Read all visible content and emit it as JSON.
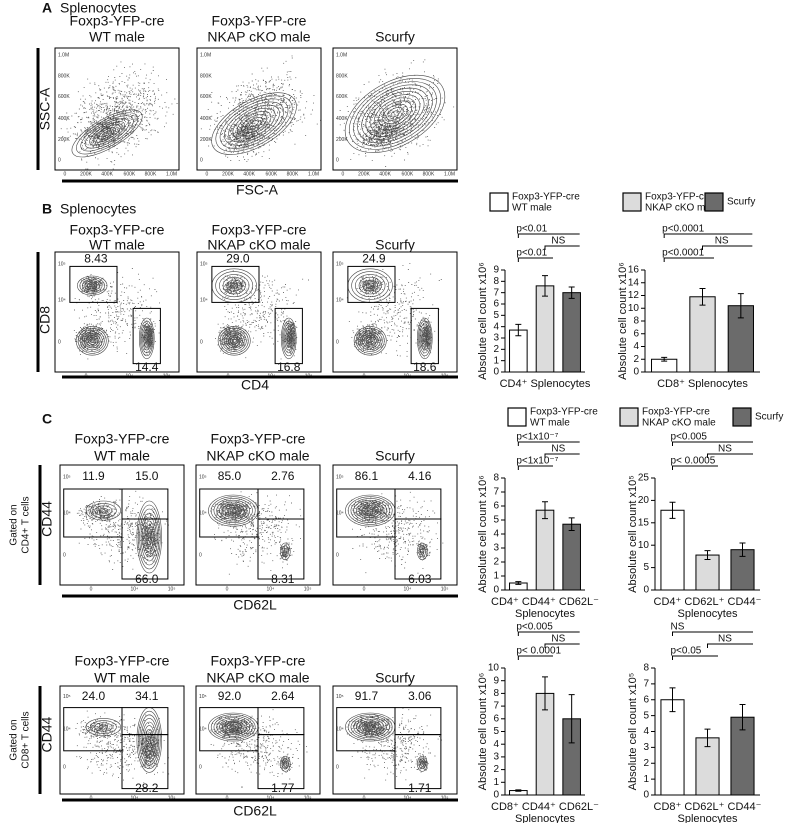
{
  "groups": [
    [
      "Foxp3-YFP-cre",
      "WT male"
    ],
    [
      "Foxp3-YFP-cre",
      "NKAP cKO male"
    ],
    [
      "Scurfy"
    ]
  ],
  "colors": [
    "#ffffff",
    "#dcdcdc",
    "#6b6b6b"
  ],
  "panels": {
    "A": {
      "label": "A",
      "title": "Splenocytes",
      "ylabel": "SSC-A",
      "xlabel": "FSC-A",
      "ticks": [
        "0",
        "200K",
        "400K",
        "600K",
        "800K",
        "1.0M"
      ]
    },
    "B": {
      "label": "B",
      "title": "Splenocytes",
      "ylabel": "CD8",
      "xlabel": "CD4",
      "ticks": [
        "0",
        "10⁴",
        "10⁵"
      ],
      "gates": [
        [
          "8.43",
          "14.4"
        ],
        [
          "29.0",
          "16.8"
        ],
        [
          "24.9",
          "18.6"
        ]
      ]
    },
    "C": {
      "label": "C",
      "ticks": [
        "0",
        "10⁴",
        "10⁵"
      ],
      "rows": [
        {
          "gated": [
            "Gated on",
            "CD4+ T cells"
          ],
          "ylabel": "CD44",
          "xlabel": "CD62L",
          "gates": [
            [
              "11.9",
              "15.0",
              "66.0"
            ],
            [
              "85.0",
              "2.76",
              "8.31"
            ],
            [
              "86.1",
              "4.16",
              "6.03"
            ]
          ]
        },
        {
          "gated": [
            "Gated on",
            "CD8+ T cells"
          ],
          "ylabel": "CD44",
          "xlabel": "CD62L",
          "gates": [
            [
              "24.0",
              "34.1",
              "28.2"
            ],
            [
              "92.0",
              "2.64",
              "1.77"
            ],
            [
              "91.7",
              "3.06",
              "1.71"
            ]
          ]
        }
      ]
    }
  },
  "chart_data": [
    {
      "type": "bar",
      "ylabel": "Absolute cell count x10⁶",
      "xlabel": [
        "CD4⁺ Splenocytes"
      ],
      "ylim": [
        0,
        9
      ],
      "yticks": [
        0,
        1,
        2,
        3,
        4,
        5,
        6,
        7,
        8,
        9
      ],
      "values": [
        3.7,
        7.6,
        7.0
      ],
      "errors": [
        0.5,
        0.9,
        0.5
      ],
      "annotations": [
        "p<0.01",
        "NS",
        "p<0.01"
      ]
    },
    {
      "type": "bar",
      "ylabel": "Absolute cell count x10⁶",
      "xlabel": [
        "CD8⁺ Splenocytes"
      ],
      "ylim": [
        0,
        16
      ],
      "yticks": [
        0,
        2,
        4,
        6,
        8,
        10,
        12,
        14,
        16
      ],
      "values": [
        2.0,
        11.8,
        10.4
      ],
      "errors": [
        0.3,
        1.3,
        1.9
      ],
      "annotations": [
        "p<0.0001",
        "NS",
        "p<0.0001"
      ]
    },
    {
      "type": "bar",
      "ylabel": "Absolute cell count x10⁶",
      "xlabel": [
        "CD4⁺ CD44⁺ CD62L⁻",
        "Splenocytes"
      ],
      "ylim": [
        0,
        8
      ],
      "yticks": [
        0,
        1,
        2,
        3,
        4,
        5,
        6,
        7,
        8
      ],
      "values": [
        0.5,
        5.7,
        4.7
      ],
      "errors": [
        0.1,
        0.6,
        0.45
      ],
      "annotations": [
        "p<1x10⁻⁷",
        "NS",
        "p<1x10⁻⁷"
      ]
    },
    {
      "type": "bar",
      "ylabel": "Absolute cell count x10⁵",
      "xlabel": [
        "CD4⁺ CD62L⁺ CD44⁻",
        "Splenocytes"
      ],
      "ylim": [
        0,
        25
      ],
      "yticks": [
        0,
        5,
        10,
        15,
        20,
        25
      ],
      "values": [
        17.8,
        7.8,
        9.0
      ],
      "errors": [
        1.8,
        1.0,
        1.5
      ],
      "annotations": [
        "p<0.005",
        "NS",
        "p< 0.0005"
      ]
    },
    {
      "type": "bar",
      "ylabel": "Absolute cell count x10⁶",
      "xlabel": [
        "CD8⁺ CD44⁺ CD62L⁻",
        "Splenocytes"
      ],
      "ylim": [
        0,
        10
      ],
      "yticks": [
        0,
        1,
        2,
        3,
        4,
        5,
        6,
        7,
        8,
        9,
        10
      ],
      "values": [
        0.35,
        8.0,
        6.0
      ],
      "errors": [
        0.05,
        1.3,
        1.9
      ],
      "annotations": [
        "p<0.005",
        "NS",
        "p< 0.0001"
      ]
    },
    {
      "type": "bar",
      "ylabel": "Absolute cell count x10⁵",
      "xlabel": [
        "CD8⁺ CD62L⁺ CD44⁻",
        "Splenocytes"
      ],
      "ylim": [
        0,
        8
      ],
      "yticks": [
        0,
        1,
        2,
        3,
        4,
        5,
        6,
        7,
        8
      ],
      "values": [
        6.0,
        3.6,
        4.9
      ],
      "errors": [
        0.75,
        0.55,
        0.8
      ],
      "annotations": [
        "NS",
        "NS",
        "p<0.05"
      ]
    }
  ]
}
